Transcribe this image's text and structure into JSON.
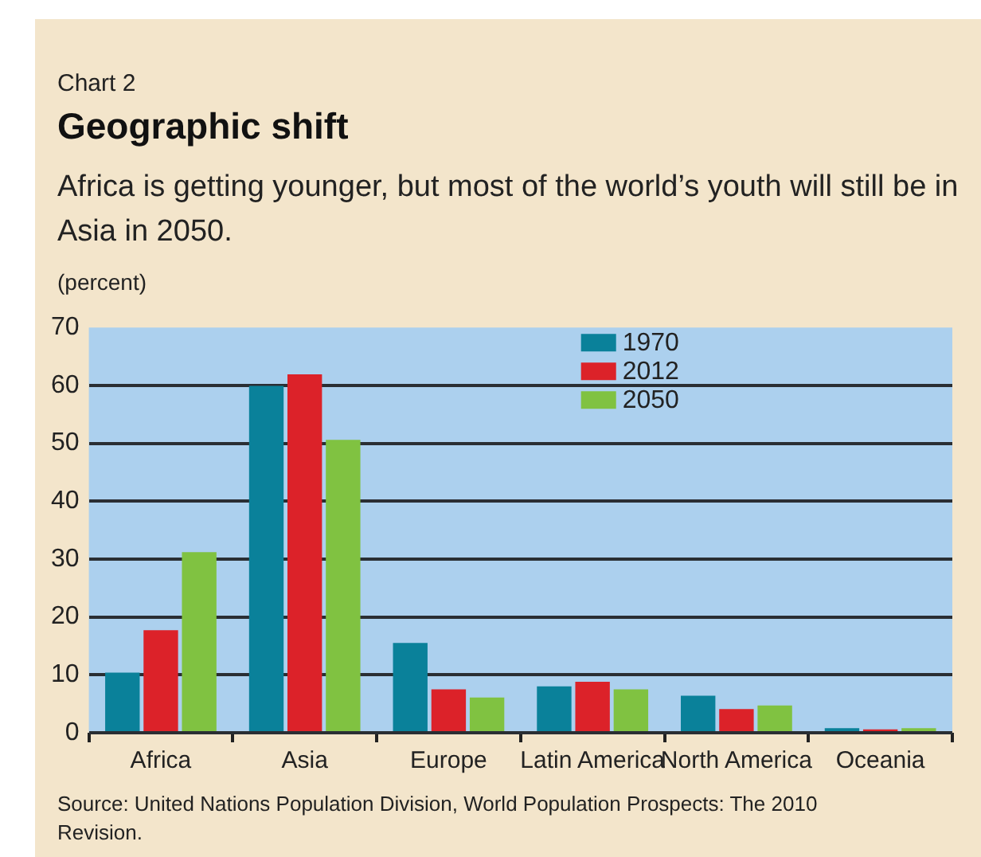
{
  "chart_data": {
    "type": "bar",
    "title": "Geographic shift",
    "subtitle": "Africa is getting younger, but most of the world’s youth will still be in Asia in 2050.",
    "ylabel": "(percent)",
    "annotations": [
      "Chart 2",
      "Source: United Nations Population Division, World Population Prospects: The 2010 Revision."
    ],
    "categories": [
      "Africa",
      "Asia",
      "Europe",
      "Latin America",
      "North America",
      "Oceania"
    ],
    "series": [
      {
        "name": "1970",
        "color": "#0a819a",
        "values": [
          10.4,
          59.9,
          15.5,
          8.0,
          6.4,
          0.8
        ]
      },
      {
        "name": "2012",
        "color": "#dc2229",
        "values": [
          17.7,
          61.9,
          7.5,
          8.8,
          4.1,
          0.6
        ]
      },
      {
        "name": "2050",
        "color": "#80c241",
        "values": [
          31.2,
          50.6,
          6.1,
          7.5,
          4.7,
          0.8
        ]
      }
    ],
    "ylim": [
      0,
      70
    ],
    "yticks": [
      0,
      10,
      20,
      30,
      40,
      50,
      60,
      70
    ],
    "grid": "y",
    "legend": "top"
  }
}
